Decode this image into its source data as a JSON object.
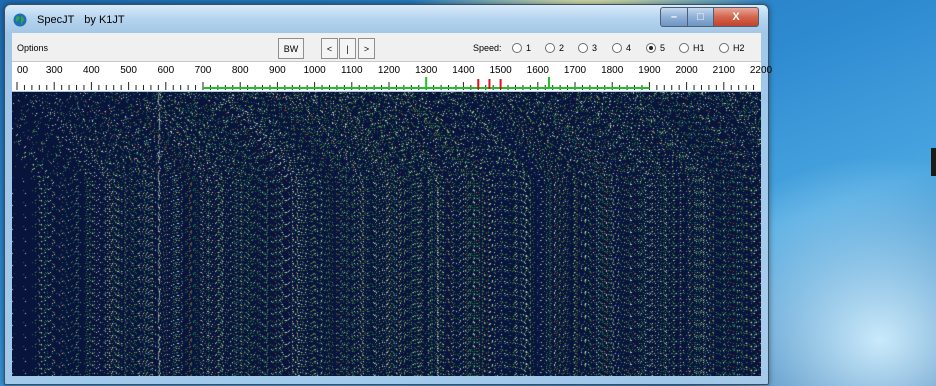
{
  "app": {
    "title": "SpecJT",
    "author": "by K1JT"
  },
  "window_controls": {
    "minimize": "–",
    "maximize": "□",
    "close": "X"
  },
  "toolbar": {
    "options": "Options",
    "bw": "BW",
    "prev": "<",
    "center": "|",
    "next": ">",
    "speed_label": "Speed:",
    "speeds": [
      {
        "label": "1",
        "checked": false
      },
      {
        "label": "2",
        "checked": false
      },
      {
        "label": "3",
        "checked": false
      },
      {
        "label": "4",
        "checked": false
      },
      {
        "label": "5",
        "checked": true
      },
      {
        "label": "H1",
        "checked": false
      },
      {
        "label": "H2",
        "checked": false
      }
    ]
  },
  "frequency_scale": {
    "labels": [
      "00",
      "300",
      "400",
      "500",
      "600",
      "700",
      "800",
      "900",
      "1000",
      "1100",
      "1200",
      "1300",
      "1400",
      "1500",
      "1600",
      "1700",
      "1800",
      "1900",
      "2000",
      "2100",
      "2200"
    ],
    "colors": {
      "band": "#22c022",
      "marker": "#e01010",
      "tick": "#222222"
    }
  },
  "colors": {
    "waterfall_bg": "#0a1740",
    "toolbar_bg": "#f0f0f0"
  }
}
